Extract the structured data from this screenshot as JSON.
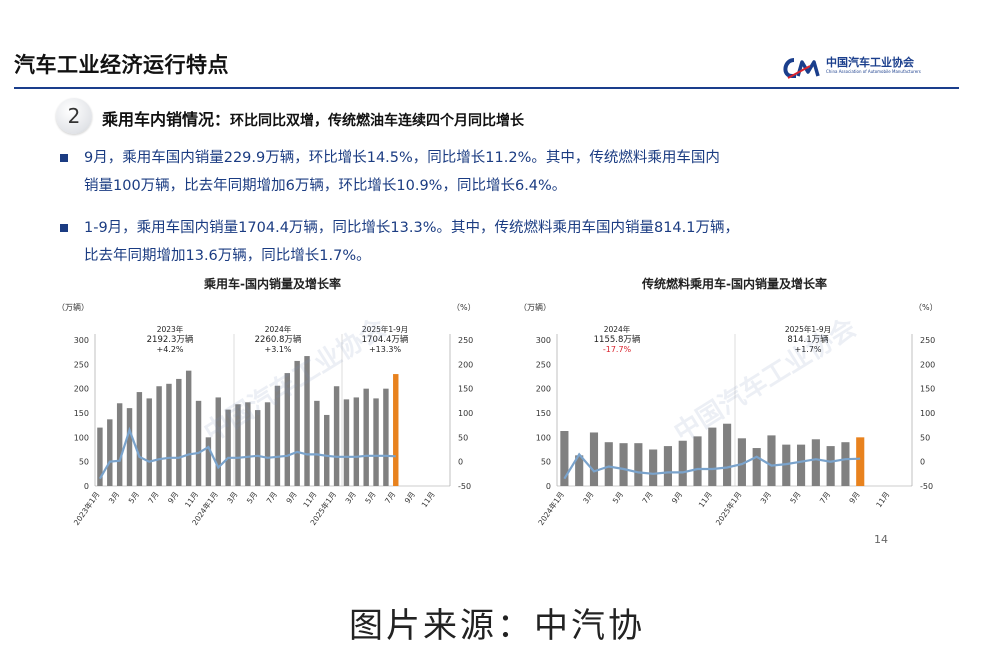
{
  "header": {
    "title": "汽车工业经济运行特点",
    "logo_name": "中国汽车工业协会",
    "logo_sub": "China Association of Automobile Manufacturers"
  },
  "section": {
    "number": "2",
    "title": "乘用车内销情况：",
    "subtitle": "环比同比双增，传统燃油车连续四个月同比增长"
  },
  "bullets": [
    {
      "line1": "9月，乘用车国内销量229.9万辆，环比增长14.5%，同比增长11.2%。其中，传统燃料乘用车国内",
      "line2": "销量100万辆，比去年同期增加6万辆，环比增长10.9%，同比增长6.4%。"
    },
    {
      "line1": "1-9月，乘用车国内销量1704.4万辆，同比增长13.3%。其中，传统燃料乘用车国内销量814.1万辆，",
      "line2": "比去年同期增加13.6万辆，同比增长1.7%。"
    }
  ],
  "colors": {
    "bar": "#808080",
    "highlight_bar": "#e8821e",
    "line": "#7aa3cc",
    "navy": "#1a3e8c",
    "negative_text": "#d9232d"
  },
  "chart_data": [
    {
      "type": "bar",
      "title": "乘用车-国内销量及增长率",
      "left_unit": "（万辆）",
      "right_unit": "（%）",
      "ylim": [
        0,
        300
      ],
      "y2lim": [
        -50,
        250
      ],
      "left_ticks": [
        "0",
        "50",
        "100",
        "150",
        "200",
        "250",
        "300"
      ],
      "right_ticks": [
        "-50",
        "0",
        "50",
        "100",
        "150",
        "200",
        "250"
      ],
      "x_labels": [
        "2023年1月",
        "3月",
        "5月",
        "7月",
        "9月",
        "11月",
        "2024年1月",
        "3月",
        "5月",
        "7月",
        "9月",
        "11月",
        "2025年1月",
        "3月",
        "5月",
        "7月",
        "9月",
        "11月"
      ],
      "values": [
        120,
        137,
        170,
        160,
        193,
        180,
        205,
        210,
        220,
        237,
        175,
        100,
        182,
        157,
        168,
        172,
        156,
        172,
        206,
        232,
        257,
        267,
        175,
        146,
        205,
        178,
        182,
        200,
        180,
        200,
        230
      ],
      "growth": [
        -35,
        0,
        2,
        65,
        10,
        0,
        5,
        8,
        8,
        15,
        18,
        30,
        -12,
        8,
        8,
        10,
        12,
        8,
        10,
        12,
        20,
        15,
        15,
        12,
        10,
        10,
        10,
        12,
        12,
        12,
        11
      ],
      "annotations": [
        {
          "period": "2023年",
          "total": "2192.3万辆",
          "growth": "+4.2%"
        },
        {
          "period": "2024年",
          "total": "2260.8万辆",
          "growth": "+3.1%"
        },
        {
          "period": "2025年1-9月",
          "total": "1704.4万辆",
          "growth": "+13.3%"
        }
      ]
    },
    {
      "type": "bar",
      "title": "传统燃料乘用车-国内销量及增长率",
      "left_unit": "（万辆）",
      "right_unit": "（%）",
      "ylim": [
        0,
        300
      ],
      "y2lim": [
        -50,
        250
      ],
      "left_ticks": [
        "0",
        "50",
        "100",
        "150",
        "200",
        "250",
        "300"
      ],
      "right_ticks": [
        "-50",
        "0",
        "50",
        "100",
        "150",
        "200",
        "250"
      ],
      "x_labels": [
        "2024年1月",
        "3月",
        "5月",
        "7月",
        "9月",
        "11月",
        "2025年1月",
        "3月",
        "5月",
        "7月",
        "9月",
        "11月"
      ],
      "values": [
        113,
        63,
        110,
        90,
        88,
        88,
        75,
        82,
        93,
        102,
        120,
        128,
        98,
        78,
        104,
        85,
        85,
        96,
        82,
        90,
        100
      ],
      "growth": [
        -35,
        15,
        -20,
        -10,
        -15,
        -22,
        -25,
        -22,
        -22,
        -15,
        -15,
        -12,
        -5,
        10,
        -8,
        -5,
        0,
        5,
        0,
        5,
        6
      ],
      "annotations": [
        {
          "period": "2024年",
          "total": "1155.8万辆",
          "growth": "-17.7%"
        },
        {
          "period": "2025年1-9月",
          "total": "814.1万辆",
          "growth": "+1.7%"
        }
      ]
    }
  ],
  "page_number": "14",
  "source": "图片来源：中汽协"
}
